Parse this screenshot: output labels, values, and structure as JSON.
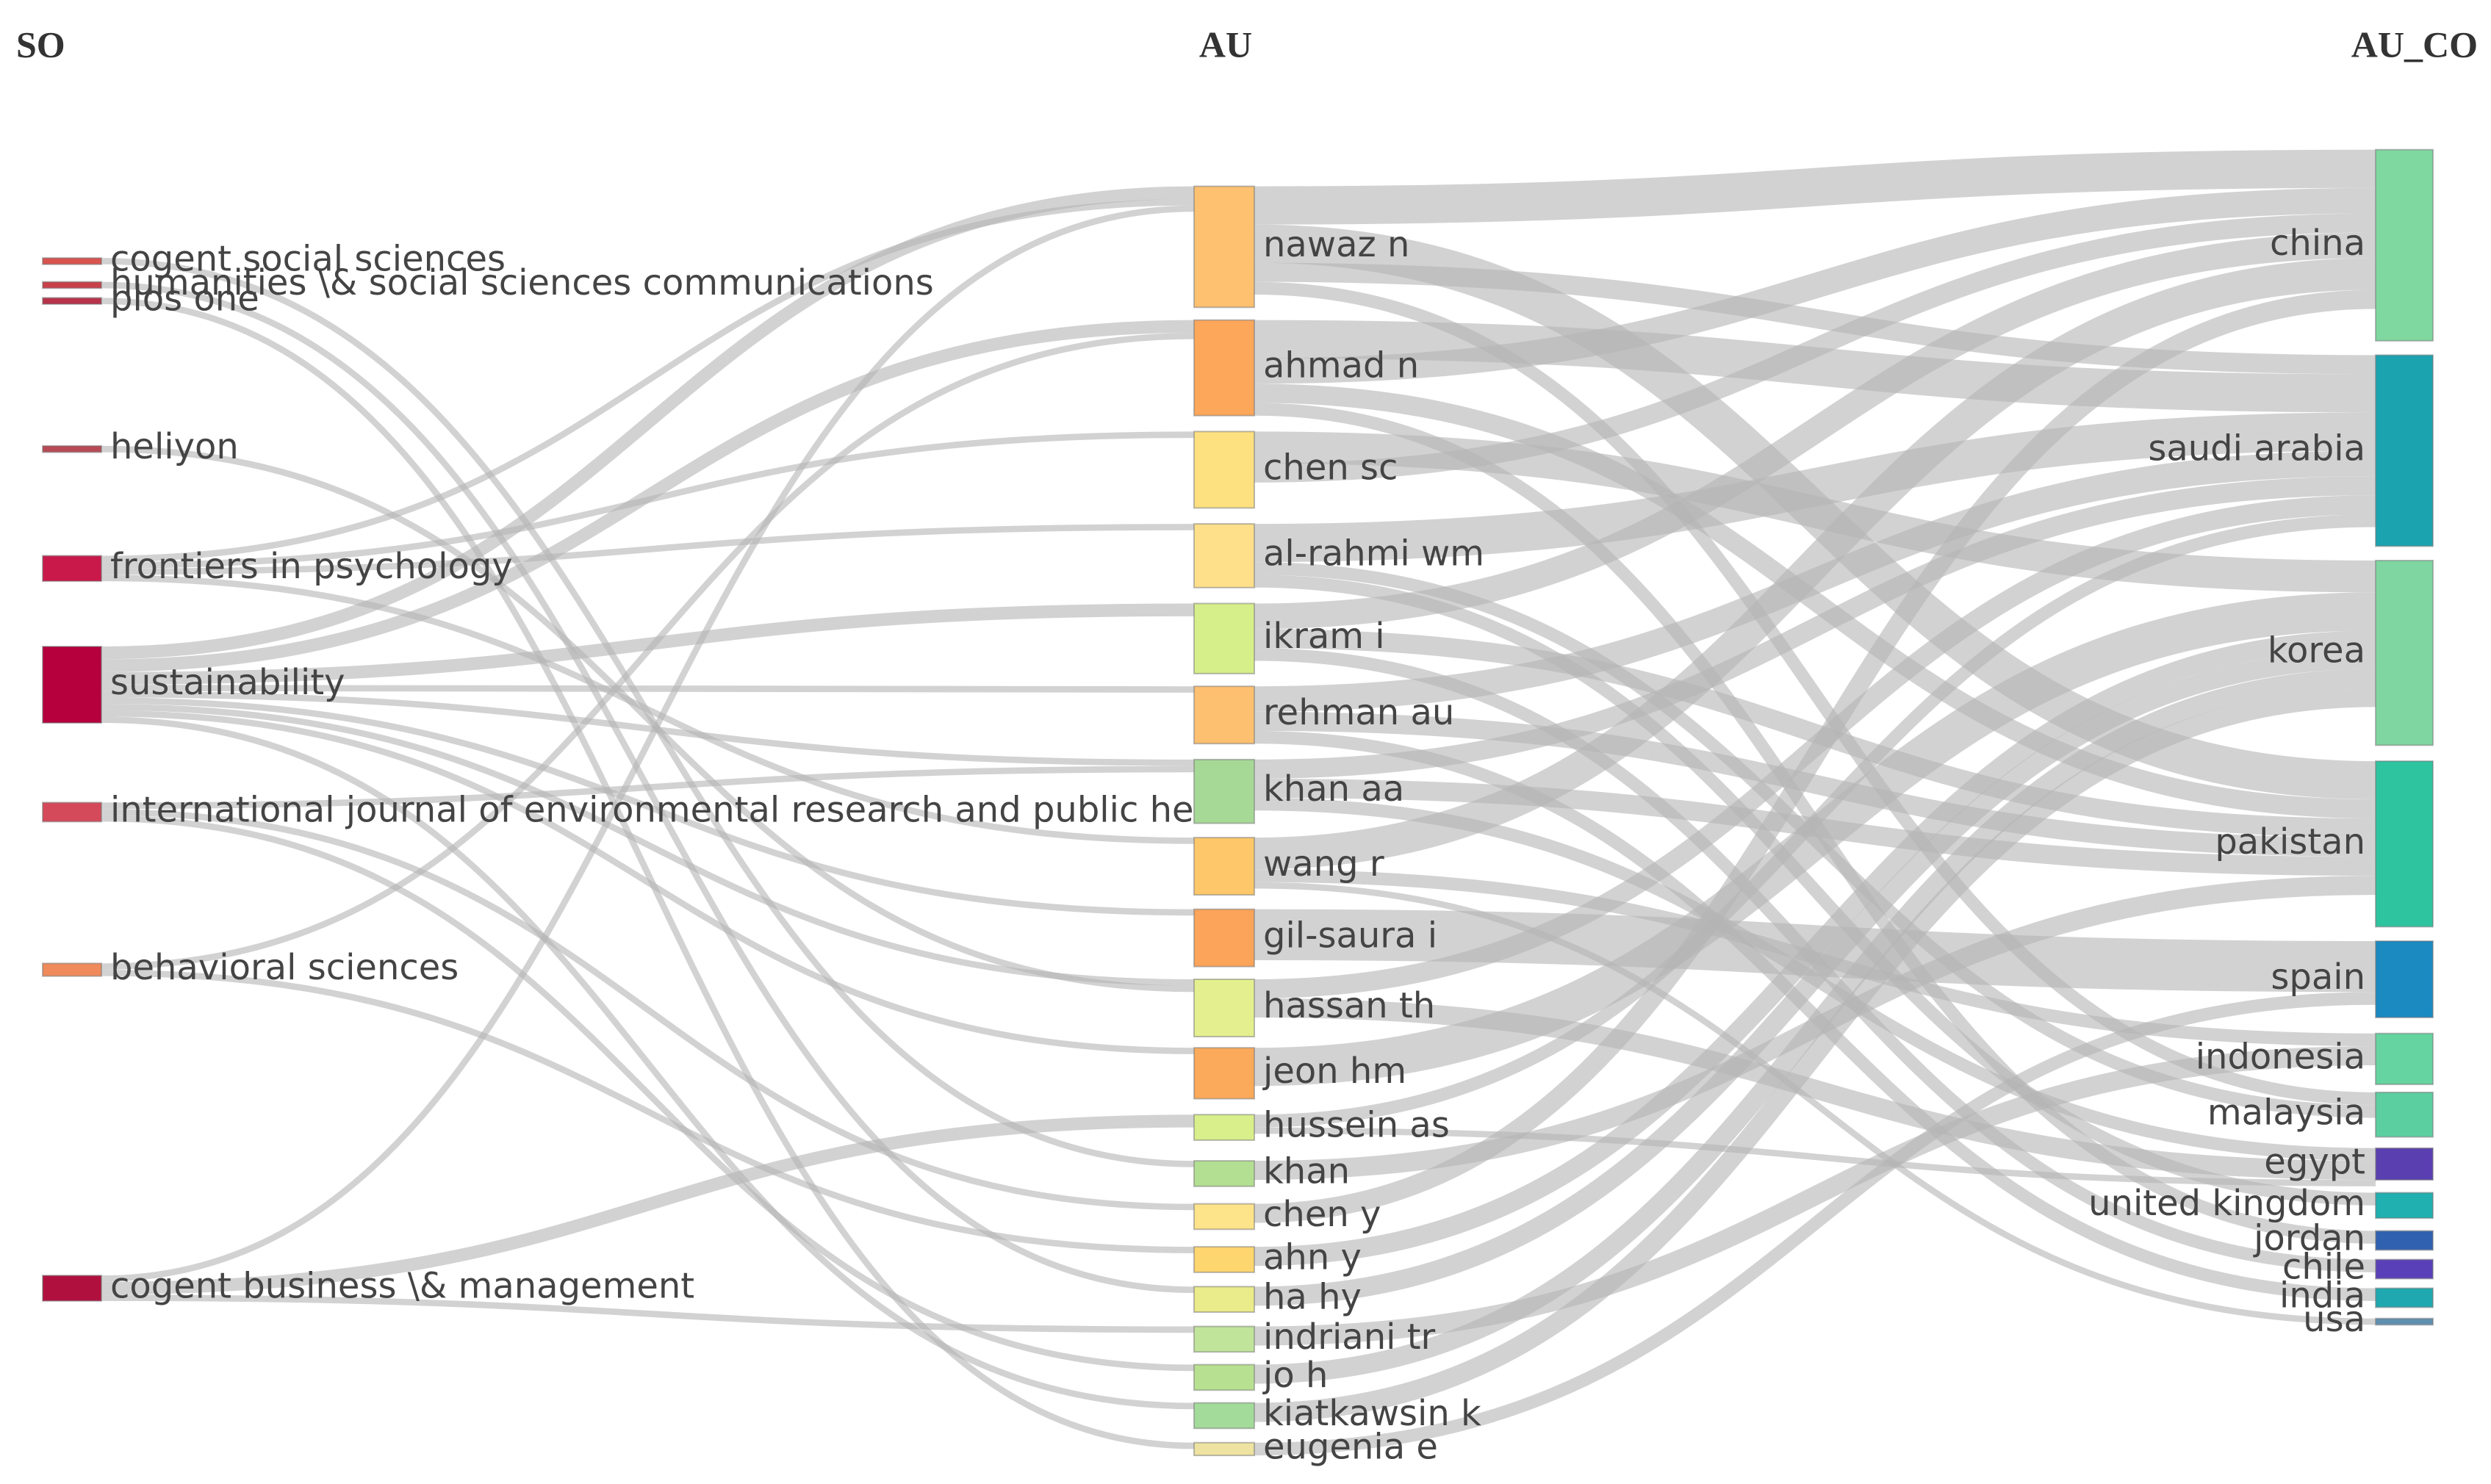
{
  "chart_data": {
    "type": "sankey",
    "link_color": "#b4b4b4",
    "columns": [
      {
        "name": "SO",
        "nodes": [
          {
            "name": "cogent social sciences",
            "color": "#d9534f",
            "value": 1
          },
          {
            "name": "humanities \\& social sciences communications",
            "color": "#c9404a",
            "value": 1
          },
          {
            "name": "plos one",
            "color": "#b8334a",
            "value": 1
          },
          {
            "name": "heliyon",
            "color": "#b84a55",
            "value": 1
          },
          {
            "name": "frontiers in psychology",
            "color": "#c8194a",
            "value": 4
          },
          {
            "name": "sustainability",
            "color": "#b5003d",
            "value": 12
          },
          {
            "name": "international journal of environmental research and public hea…",
            "color": "#d44a5a",
            "value": 3
          },
          {
            "name": "behavioral sciences",
            "color": "#f08a5a",
            "value": 2
          },
          {
            "name": "cogent business \\& management",
            "color": "#b0103e",
            "value": 4
          }
        ]
      },
      {
        "name": "AU",
        "nodes": [
          {
            "name": "nawaz n",
            "color": "#fdc170",
            "value": 19
          },
          {
            "name": "ahmad n",
            "color": "#fca75a",
            "value": 15
          },
          {
            "name": "chen sc",
            "color": "#fde080",
            "value": 12
          },
          {
            "name": "al-rahmi wm",
            "color": "#fee08b",
            "value": 10
          },
          {
            "name": "ikram i",
            "color": "#d7ef8b",
            "value": 11
          },
          {
            "name": "rehman au",
            "color": "#fdc070",
            "value": 9
          },
          {
            "name": "khan aa",
            "color": "#a6d996",
            "value": 10
          },
          {
            "name": "wang r",
            "color": "#fec86a",
            "value": 9
          },
          {
            "name": "gil-saura i",
            "color": "#fba45a",
            "value": 9
          },
          {
            "name": "hassan th",
            "color": "#e4f08f",
            "value": 9
          },
          {
            "name": "jeon hm",
            "color": "#fba95a",
            "value": 8
          },
          {
            "name": "hussein as",
            "color": "#d9ef8b",
            "value": 4
          },
          {
            "name": "khan",
            "color": "#b3df92",
            "value": 4
          },
          {
            "name": "chen y",
            "color": "#fde38a",
            "value": 4
          },
          {
            "name": "ahn y",
            "color": "#fed66f",
            "value": 4
          },
          {
            "name": "ha hy",
            "color": "#eaeb8a",
            "value": 4
          },
          {
            "name": "indriani tr",
            "color": "#c0e59a",
            "value": 4
          },
          {
            "name": "jo h",
            "color": "#b7e190",
            "value": 4
          },
          {
            "name": "kiatkawsin k",
            "color": "#a3db9a",
            "value": 4
          },
          {
            "name": "eugenia e",
            "color": "#eee3a0",
            "value": 2
          }
        ]
      },
      {
        "name": "AU_CO",
        "nodes": [
          {
            "name": "china",
            "color": "#7fd8a0",
            "value": 30
          },
          {
            "name": "saudi arabia",
            "color": "#1ba3b0",
            "value": 30
          },
          {
            "name": "korea",
            "color": "#7fd6a0",
            "value": 29
          },
          {
            "name": "pakistan",
            "color": "#2ec4a0",
            "value": 26
          },
          {
            "name": "spain",
            "color": "#1a8ac0",
            "value": 12
          },
          {
            "name": "indonesia",
            "color": "#66d4a0",
            "value": 8
          },
          {
            "name": "malaysia",
            "color": "#5ccfa0",
            "value": 7
          },
          {
            "name": "egypt",
            "color": "#5a3fb0",
            "value": 5
          },
          {
            "name": "united kingdom",
            "color": "#20b0b0",
            "value": 4
          },
          {
            "name": "jordan",
            "color": "#3060b0",
            "value": 3
          },
          {
            "name": "chile",
            "color": "#5a40b8",
            "value": 3
          },
          {
            "name": "india",
            "color": "#20a8b0",
            "value": 3
          },
          {
            "name": "usa",
            "color": "#6090b0",
            "value": 1
          }
        ]
      }
    ],
    "links": [
      {
        "source": "sustainability",
        "target": "nawaz n",
        "value": 2
      },
      {
        "source": "sustainability",
        "target": "ahmad n",
        "value": 2
      },
      {
        "source": "sustainability",
        "target": "ikram i",
        "value": 2
      },
      {
        "source": "sustainability",
        "target": "rehman au",
        "value": 1
      },
      {
        "source": "sustainability",
        "target": "khan aa",
        "value": 1
      },
      {
        "source": "sustainability",
        "target": "gil-saura i",
        "value": 1
      },
      {
        "source": "sustainability",
        "target": "hassan th",
        "value": 1
      },
      {
        "source": "sustainability",
        "target": "jeon hm",
        "value": 1
      },
      {
        "source": "sustainability",
        "target": "kiatkawsin k",
        "value": 1
      },
      {
        "source": "frontiers in psychology",
        "target": "nawaz n",
        "value": 1
      },
      {
        "source": "frontiers in psychology",
        "target": "chen sc",
        "value": 1
      },
      {
        "source": "frontiers in psychology",
        "target": "al-rahmi wm",
        "value": 1
      },
      {
        "source": "frontiers in psychology",
        "target": "wang r",
        "value": 1
      },
      {
        "source": "cogent business \\& management",
        "target": "nawaz n",
        "value": 1
      },
      {
        "source": "cogent business \\& management",
        "target": "hussein as",
        "value": 2
      },
      {
        "source": "cogent business \\& management",
        "target": "indriani tr",
        "value": 1
      },
      {
        "source": "international journal of environmental research and public hea…",
        "target": "khan aa",
        "value": 1
      },
      {
        "source": "international journal of environmental research and public hea…",
        "target": "chen y",
        "value": 1
      },
      {
        "source": "international journal of environmental research and public hea…",
        "target": "jo h",
        "value": 1
      },
      {
        "source": "behavioral sciences",
        "target": "ahmad n",
        "value": 1
      },
      {
        "source": "behavioral sciences",
        "target": "ahn y",
        "value": 1
      },
      {
        "source": "heliyon",
        "target": "hassan th",
        "value": 1
      },
      {
        "source": "cogent social sciences",
        "target": "khan",
        "value": 1
      },
      {
        "source": "humanities \\& social sciences communications",
        "target": "ha hy",
        "value": 1
      },
      {
        "source": "plos one",
        "target": "eugenia e",
        "value": 1
      },
      {
        "source": "nawaz n",
        "target": "china",
        "value": 6
      },
      {
        "source": "nawaz n",
        "target": "pakistan",
        "value": 6
      },
      {
        "source": "nawaz n",
        "target": "saudi arabia",
        "value": 3
      },
      {
        "source": "nawaz n",
        "target": "malaysia",
        "value": 2
      },
      {
        "source": "ahmad n",
        "target": "saudi arabia",
        "value": 6
      },
      {
        "source": "ahmad n",
        "target": "china",
        "value": 4
      },
      {
        "source": "ahmad n",
        "target": "pakistan",
        "value": 3
      },
      {
        "source": "ahmad n",
        "target": "jordan",
        "value": 2
      },
      {
        "source": "chen sc",
        "target": "korea",
        "value": 5
      },
      {
        "source": "chen sc",
        "target": "china",
        "value": 3
      },
      {
        "source": "al-rahmi wm",
        "target": "saudi arabia",
        "value": 6
      },
      {
        "source": "al-rahmi wm",
        "target": "malaysia",
        "value": 2
      },
      {
        "source": "al-rahmi wm",
        "target": "united kingdom",
        "value": 2
      },
      {
        "source": "ikram i",
        "target": "china",
        "value": 4
      },
      {
        "source": "ikram i",
        "target": "pakistan",
        "value": 3
      },
      {
        "source": "ikram i",
        "target": "chile",
        "value": 2
      },
      {
        "source": "rehman au",
        "target": "saudi arabia",
        "value": 4
      },
      {
        "source": "rehman au",
        "target": "pakistan",
        "value": 3
      },
      {
        "source": "rehman au",
        "target": "india",
        "value": 2
      },
      {
        "source": "khan aa",
        "target": "saudi arabia",
        "value": 3
      },
      {
        "source": "khan aa",
        "target": "pakistan",
        "value": 3
      },
      {
        "source": "khan aa",
        "target": "egypt",
        "value": 2
      },
      {
        "source": "wang r",
        "target": "china",
        "value": 5
      },
      {
        "source": "wang r",
        "target": "indonesia",
        "value": 2
      },
      {
        "source": "wang r",
        "target": "usa",
        "value": 1
      },
      {
        "source": "gil-saura i",
        "target": "spain",
        "value": 8
      },
      {
        "source": "hassan th",
        "target": "saudi arabia",
        "value": 3
      },
      {
        "source": "hassan th",
        "target": "egypt",
        "value": 3
      },
      {
        "source": "jeon hm",
        "target": "korea",
        "value": 6
      },
      {
        "source": "hussein as",
        "target": "saudi arabia",
        "value": 2
      },
      {
        "source": "hussein as",
        "target": "egypt",
        "value": 1
      },
      {
        "source": "khan",
        "target": "pakistan",
        "value": 3
      },
      {
        "source": "chen y",
        "target": "china",
        "value": 3
      },
      {
        "source": "ahn y",
        "target": "korea",
        "value": 3
      },
      {
        "source": "ha hy",
        "target": "korea",
        "value": 3
      },
      {
        "source": "indriani tr",
        "target": "indonesia",
        "value": 3
      },
      {
        "source": "jo h",
        "target": "korea",
        "value": 3
      },
      {
        "source": "kiatkawsin k",
        "target": "korea",
        "value": 3
      },
      {
        "source": "eugenia e",
        "target": "spain",
        "value": 2
      }
    ]
  }
}
